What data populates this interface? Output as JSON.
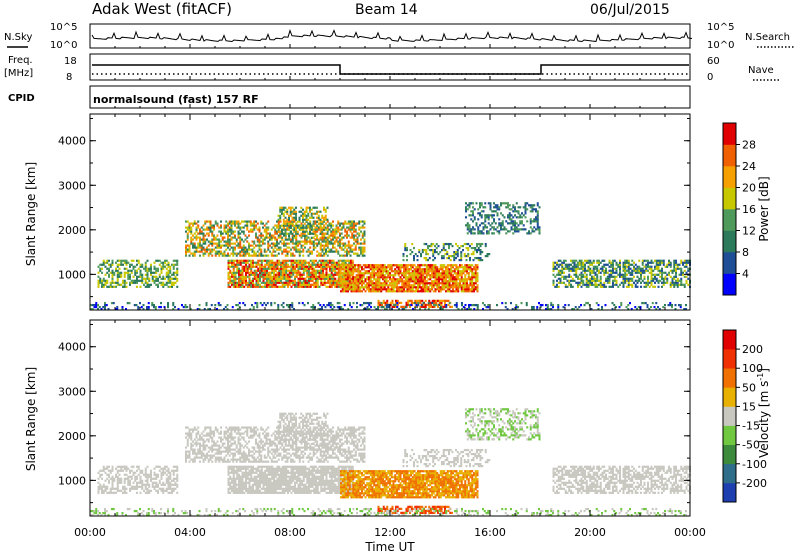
{
  "header": {
    "station": "Adak West (fitACF)",
    "beam": "Beam 14",
    "date": "06/Jul/2015"
  },
  "top_panel": {
    "left_label": "N.Sky",
    "right_label": "N.Search",
    "left_ticks": [
      "10^5",
      "10^0"
    ],
    "right_ticks": [
      "10^5",
      "10^0"
    ]
  },
  "freq_panel": {
    "left_label_1": "Freq.",
    "left_label_2": "[MHz]",
    "right_label": "Nave",
    "left_ticks": [
      "18",
      "8"
    ],
    "right_ticks": [
      "60",
      "0"
    ]
  },
  "cpid": {
    "label": "CPID",
    "program": "normalsound (fast) 157 RF"
  },
  "colors": {
    "power_scale": [
      "#0000ff",
      "#1e4f96",
      "#2b7a5c",
      "#4e9a5a",
      "#c8c800",
      "#f5a000",
      "#f06000",
      "#e00000"
    ],
    "velocity_scale": [
      "#1e3fb0",
      "#2e6e8a",
      "#3c8a3c",
      "#70c840",
      "#c8c8c0",
      "#e8b000",
      "#f07000",
      "#f03000",
      "#e00000"
    ]
  },
  "chart_data": [
    {
      "type": "heatmap",
      "name": "power",
      "ylabel": "Slant Range [km]",
      "xlabel": "Time UT",
      "x_ticks": [
        "00:00",
        "04:00",
        "08:00",
        "12:00",
        "16:00",
        "20:00",
        "00:00"
      ],
      "y_ticks": [
        "1000",
        "2000",
        "3000",
        "4000"
      ],
      "ylim": [
        200,
        4600
      ],
      "xlim_hours": [
        0,
        24
      ],
      "colorbar_title": "Power [dB]",
      "colorbar_ticks": [
        "28",
        "24",
        "20",
        "16",
        "12",
        "8",
        "4"
      ]
    },
    {
      "type": "heatmap",
      "name": "velocity",
      "ylabel": "Slant Range [km]",
      "xlabel": "Time UT",
      "x_ticks": [
        "00:00",
        "04:00",
        "08:00",
        "12:00",
        "16:00",
        "20:00",
        "00:00"
      ],
      "y_ticks": [
        "1000",
        "2000",
        "3000",
        "4000"
      ],
      "ylim": [
        200,
        4600
      ],
      "xlim_hours": [
        0,
        24
      ],
      "colorbar_title": "Velocity [m s",
      "colorbar_exponent": "-1",
      "colorbar_title_end": "]",
      "colorbar_ticks": [
        "200",
        "100",
        "50",
        "15",
        "-15",
        "-50",
        "-100",
        "-200"
      ]
    }
  ],
  "x_axis": {
    "ticks": [
      "00:00",
      "04:00",
      "08:00",
      "12:00",
      "16:00",
      "20:00",
      "00:00"
    ],
    "label": "Time UT"
  }
}
